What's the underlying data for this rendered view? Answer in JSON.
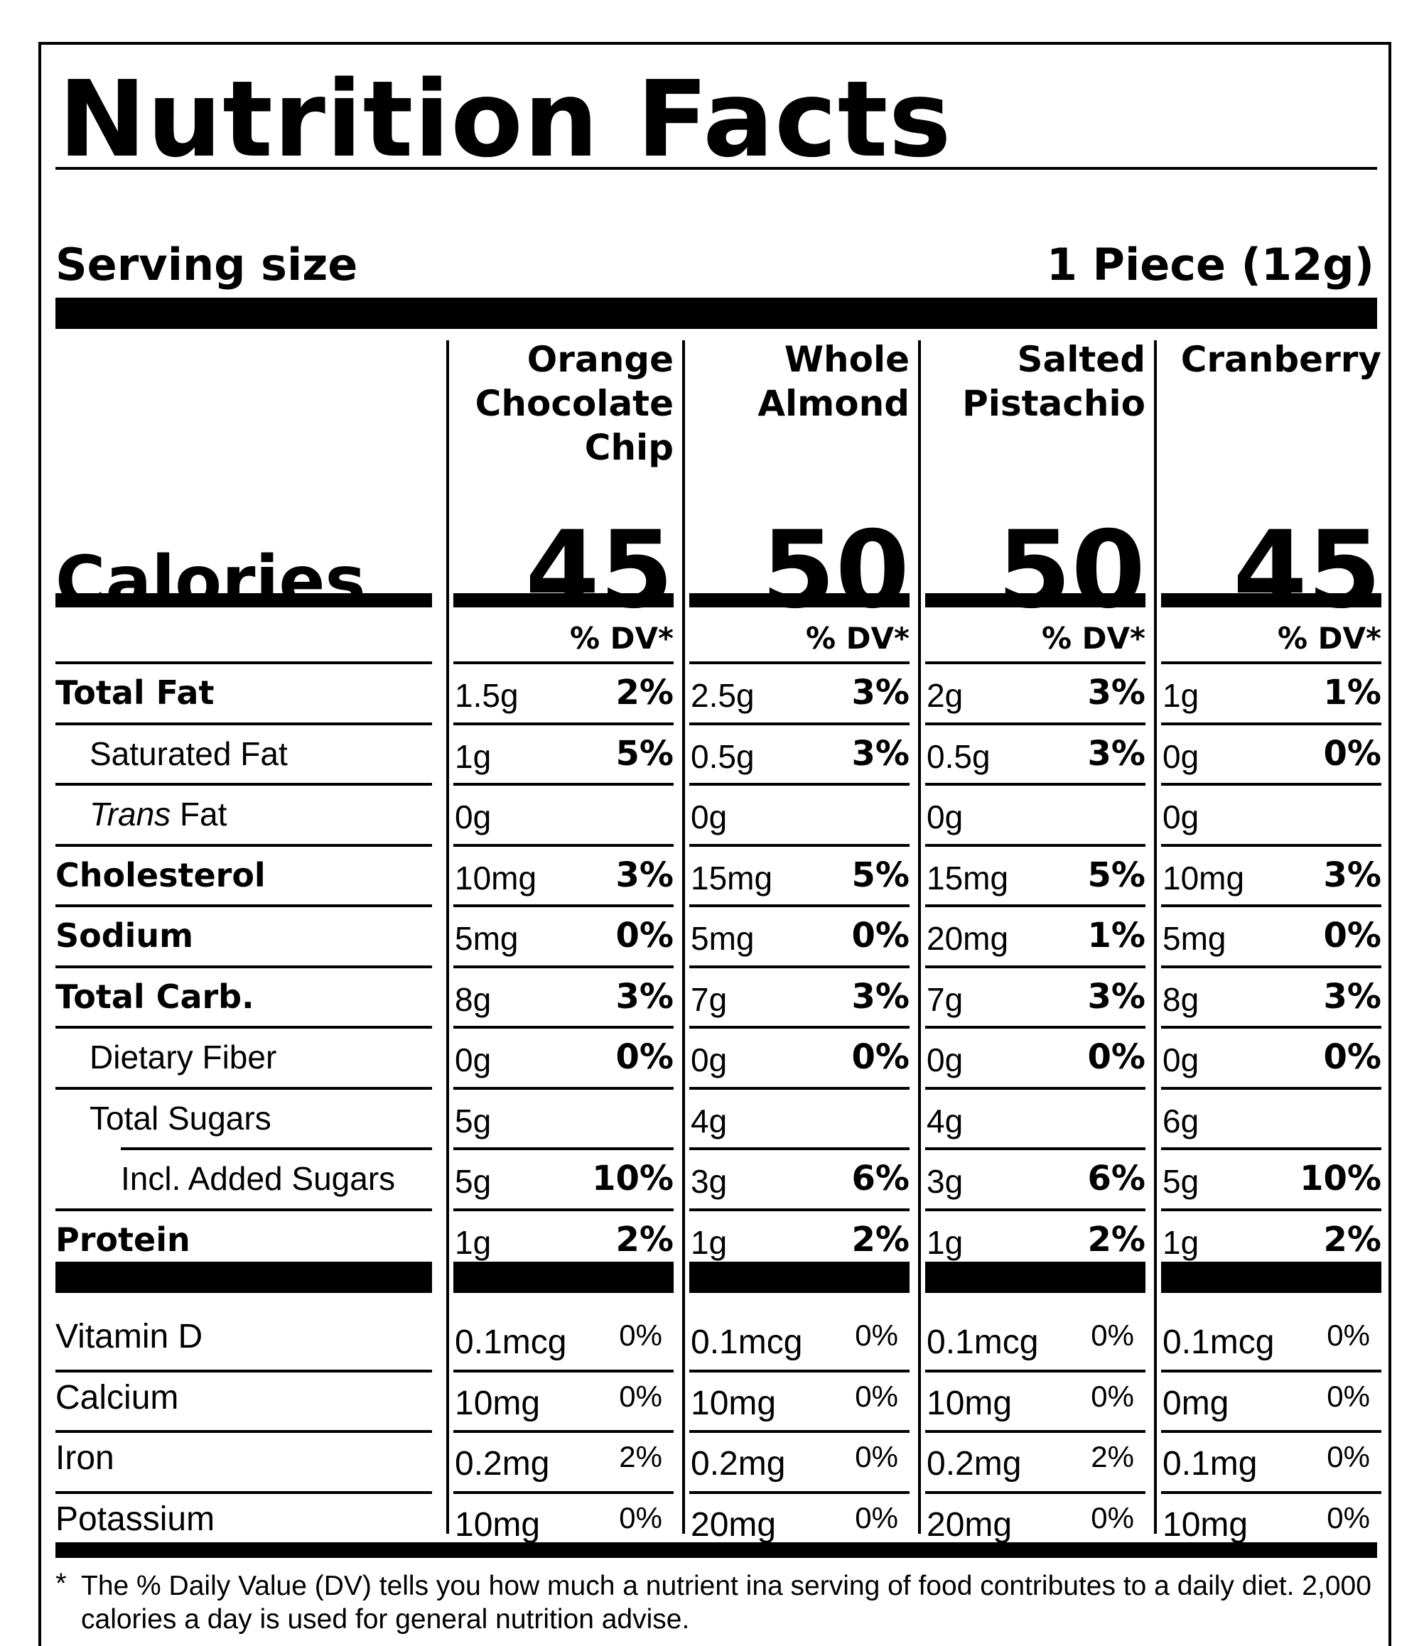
{
  "title": "Nutrition Facts",
  "serving": {
    "label": "Serving size",
    "value": "1 Piece (12g)"
  },
  "columns": [
    {
      "name": "Orange Chocolate Chip",
      "calories": "45",
      "dv_header": "% DV*"
    },
    {
      "name": "Whole Almond",
      "calories": "50",
      "dv_header": "% DV*"
    },
    {
      "name": "Salted Pistachio",
      "calories": "50",
      "dv_header": "% DV*"
    },
    {
      "name": "Cranberry",
      "calories": "45",
      "dv_header": "% DV*"
    }
  ],
  "calories_label": "Calories",
  "nutrients": [
    {
      "label": "Total Fat",
      "bold": true,
      "indent": 0,
      "values": [
        {
          "amt": "1.5g",
          "dv": "2%"
        },
        {
          "amt": "2.5g",
          "dv": "3%"
        },
        {
          "amt": "2g",
          "dv": "3%"
        },
        {
          "amt": "1g",
          "dv": "1%"
        }
      ]
    },
    {
      "label": "Saturated Fat",
      "bold": false,
      "indent": 1,
      "values": [
        {
          "amt": "1g",
          "dv": "5%"
        },
        {
          "amt": "0.5g",
          "dv": "3%"
        },
        {
          "amt": "0.5g",
          "dv": "3%"
        },
        {
          "amt": "0g",
          "dv": "0%"
        }
      ]
    },
    {
      "label_italic": "Trans",
      "label": " Fat",
      "bold": false,
      "indent": 1,
      "values": [
        {
          "amt": "0g",
          "dv": ""
        },
        {
          "amt": "0g",
          "dv": ""
        },
        {
          "amt": "0g",
          "dv": ""
        },
        {
          "amt": "0g",
          "dv": ""
        }
      ]
    },
    {
      "label": "Cholesterol",
      "bold": true,
      "indent": 0,
      "values": [
        {
          "amt": "10mg",
          "dv": "3%"
        },
        {
          "amt": "15mg",
          "dv": "5%"
        },
        {
          "amt": "15mg",
          "dv": "5%"
        },
        {
          "amt": "10mg",
          "dv": "3%"
        }
      ]
    },
    {
      "label": "Sodium",
      "bold": true,
      "indent": 0,
      "values": [
        {
          "amt": "5mg",
          "dv": "0%"
        },
        {
          "amt": "5mg",
          "dv": "0%"
        },
        {
          "amt": "20mg",
          "dv": "1%"
        },
        {
          "amt": "5mg",
          "dv": "0%"
        }
      ]
    },
    {
      "label": "Total Carb.",
      "bold": true,
      "indent": 0,
      "values": [
        {
          "amt": "8g",
          "dv": "3%"
        },
        {
          "amt": "7g",
          "dv": "3%"
        },
        {
          "amt": "7g",
          "dv": "3%"
        },
        {
          "amt": "8g",
          "dv": "3%"
        }
      ]
    },
    {
      "label": "Dietary Fiber",
      "bold": false,
      "indent": 1,
      "values": [
        {
          "amt": "0g",
          "dv": "0%"
        },
        {
          "amt": "0g",
          "dv": "0%"
        },
        {
          "amt": "0g",
          "dv": "0%"
        },
        {
          "amt": "0g",
          "dv": "0%"
        }
      ]
    },
    {
      "label": "Total Sugars",
      "bold": false,
      "indent": 1,
      "values": [
        {
          "amt": "5g",
          "dv": ""
        },
        {
          "amt": "4g",
          "dv": ""
        },
        {
          "amt": "4g",
          "dv": ""
        },
        {
          "amt": "6g",
          "dv": ""
        }
      ]
    },
    {
      "label": "Incl. Added Sugars",
      "bold": false,
      "indent": 2,
      "values": [
        {
          "amt": "5g",
          "dv": "10%"
        },
        {
          "amt": "3g",
          "dv": "6%"
        },
        {
          "amt": "3g",
          "dv": "6%"
        },
        {
          "amt": "5g",
          "dv": "10%"
        }
      ]
    },
    {
      "label": "Protein",
      "bold": true,
      "indent": 0,
      "values": [
        {
          "amt": "1g",
          "dv": "2%"
        },
        {
          "amt": "1g",
          "dv": "2%"
        },
        {
          "amt": "1g",
          "dv": "2%"
        },
        {
          "amt": "1g",
          "dv": "2%"
        }
      ]
    }
  ],
  "vitamins": [
    {
      "label": "Vitamin D",
      "values": [
        {
          "amt": "0.1mcg",
          "dv": "0%"
        },
        {
          "amt": "0.1mcg",
          "dv": "0%"
        },
        {
          "amt": "0.1mcg",
          "dv": "0%"
        },
        {
          "amt": "0.1mcg",
          "dv": "0%"
        }
      ]
    },
    {
      "label": "Calcium",
      "values": [
        {
          "amt": "10mg",
          "dv": "0%"
        },
        {
          "amt": "10mg",
          "dv": "0%"
        },
        {
          "amt": "10mg",
          "dv": "0%"
        },
        {
          "amt": "0mg",
          "dv": "0%"
        }
      ]
    },
    {
      "label": "Iron",
      "values": [
        {
          "amt": "0.2mg",
          "dv": "2%"
        },
        {
          "amt": "0.2mg",
          "dv": "0%"
        },
        {
          "amt": "0.2mg",
          "dv": "2%"
        },
        {
          "amt": "0.1mg",
          "dv": "0%"
        }
      ]
    },
    {
      "label": "Potassium",
      "values": [
        {
          "amt": "10mg",
          "dv": "0%"
        },
        {
          "amt": "20mg",
          "dv": "0%"
        },
        {
          "amt": "20mg",
          "dv": "0%"
        },
        {
          "amt": "10mg",
          "dv": "0%"
        }
      ]
    }
  ],
  "footnote_star": "*",
  "footnote": "The % Daily Value (DV) tells you how much a nutrient ina  serving of food contributes to a daily diet. 2,000 calories a day is used for general nutrition advise."
}
